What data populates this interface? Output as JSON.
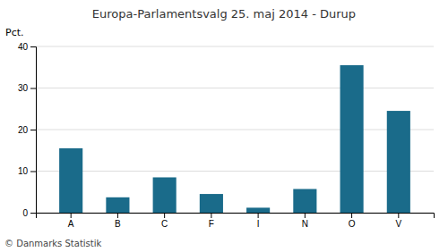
{
  "chart_data": {
    "type": "bar",
    "title": "Europa-Parlamentsvalg 25. maj 2014 - Durup",
    "categories": [
      "A",
      "B",
      "C",
      "F",
      "I",
      "N",
      "O",
      "V"
    ],
    "values": [
      15.5,
      3.7,
      8.5,
      4.5,
      1.2,
      5.7,
      35.5,
      24.5
    ],
    "color": "#1a6b8a",
    "ylabel": "Pct.",
    "ylim": [
      0,
      40
    ],
    "yticks": [
      0,
      10,
      20,
      30,
      40
    ],
    "grid": true,
    "annotations": [
      "© Danmarks Statistik"
    ]
  }
}
